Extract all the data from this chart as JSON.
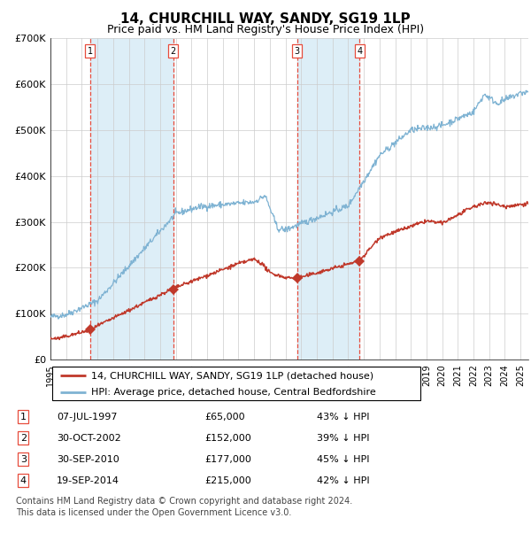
{
  "title": "14, CHURCHILL WAY, SANDY, SG19 1LP",
  "subtitle": "Price paid vs. HM Land Registry's House Price Index (HPI)",
  "footer1": "Contains HM Land Registry data © Crown copyright and database right 2024.",
  "footer2": "This data is licensed under the Open Government Licence v3.0.",
  "legend1": "14, CHURCHILL WAY, SANDY, SG19 1LP (detached house)",
  "legend2": "HPI: Average price, detached house, Central Bedfordshire",
  "transactions": [
    {
      "label": "1",
      "date_str": "07-JUL-1997",
      "year": 1997.52,
      "price": 65000,
      "pct": "43%",
      "dir": "↓"
    },
    {
      "label": "2",
      "date_str": "30-OCT-2002",
      "year": 2002.83,
      "price": 152000,
      "pct": "39%",
      "dir": "↓"
    },
    {
      "label": "3",
      "date_str": "30-SEP-2010",
      "year": 2010.75,
      "price": 177000,
      "pct": "45%",
      "dir": "↓"
    },
    {
      "label": "4",
      "date_str": "19-SEP-2014",
      "year": 2014.72,
      "price": 215000,
      "pct": "42%",
      "dir": "↓"
    }
  ],
  "ylim": [
    0,
    700000
  ],
  "yticks": [
    0,
    100000,
    200000,
    300000,
    400000,
    500000,
    600000,
    700000
  ],
  "ytick_labels": [
    "£0",
    "£100K",
    "£200K",
    "£300K",
    "£400K",
    "£500K",
    "£600K",
    "£700K"
  ],
  "red_color": "#c0392b",
  "blue_color": "#7fb3d3",
  "shade_color": "#ddeef7",
  "grid_color": "#cccccc",
  "dashed_color": "#e74c3c",
  "title_fontsize": 11,
  "subtitle_fontsize": 9,
  "axis_fontsize": 8,
  "tick_fontsize": 7,
  "legend_fontsize": 8,
  "table_fontsize": 8,
  "footer_fontsize": 7,
  "xmin": 1995,
  "xmax": 2025.5
}
